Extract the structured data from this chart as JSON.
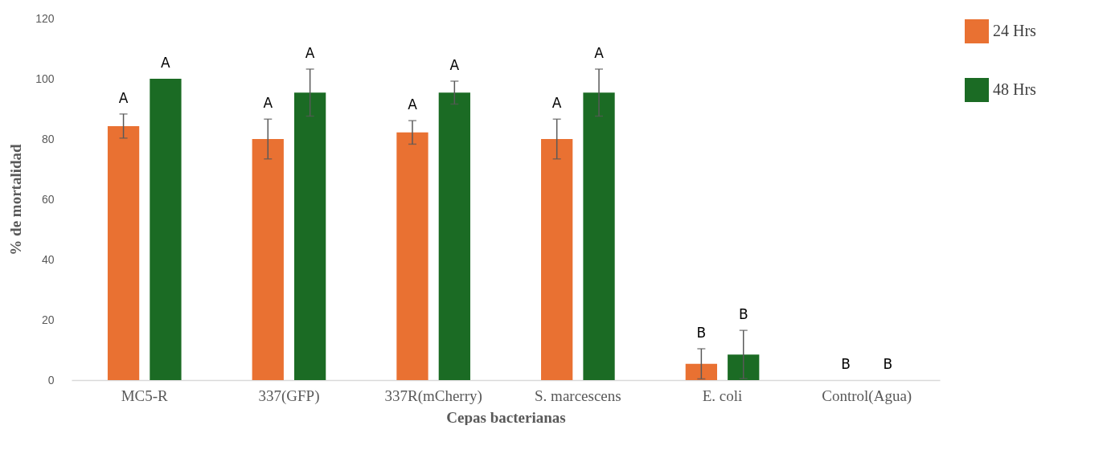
{
  "chart_data": {
    "type": "bar",
    "xlabel": "Cepas bacterianas",
    "ylabel": "% de mortalidad",
    "categories": [
      "MC5-R",
      "337(GFP)",
      "337R(mCherry)",
      "S. marcescens",
      "E. coli",
      "Control(Agua)"
    ],
    "series": [
      {
        "name": "24 Hrs",
        "color": "#e97132",
        "values": [
          84.3,
          80,
          82.2,
          80,
          5.4,
          0
        ],
        "errors": [
          4,
          6.6,
          3.9,
          6.6,
          5,
          null
        ]
      },
      {
        "name": "48 Hrs",
        "color": "#1b6b24",
        "values": [
          100,
          95.4,
          95.4,
          95.4,
          8.5,
          0
        ],
        "errors": [
          null,
          7.8,
          3.8,
          7.8,
          8,
          null
        ]
      }
    ],
    "ylim": [
      0,
      120
    ],
    "yticks": [
      0,
      20,
      40,
      60,
      80,
      100,
      120
    ],
    "grid": false,
    "legend": "top right",
    "annotations": [
      "A",
      "A",
      "A",
      "A",
      "A",
      "A",
      "A",
      "A",
      "B",
      "B",
      "B",
      "B"
    ]
  }
}
